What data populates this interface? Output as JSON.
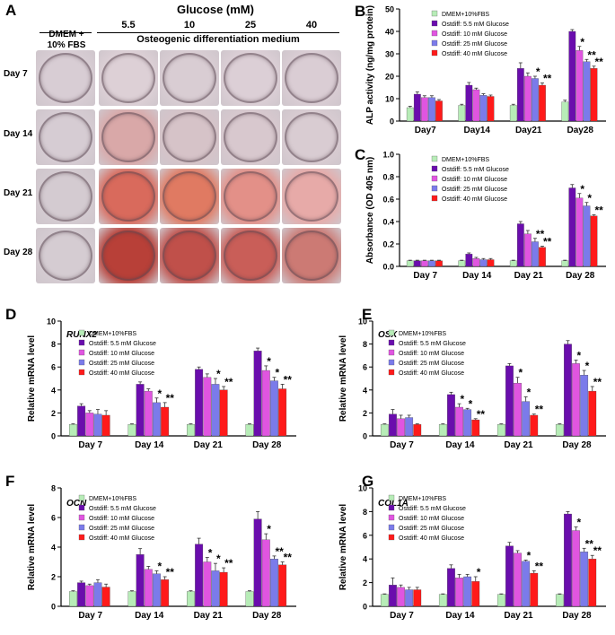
{
  "panel_a": {
    "label": "A",
    "glucose_header": "Glucose (mM)",
    "control_header": "DMEM +\n10% FBS",
    "medium_header": "Osteogenic differentiation medium",
    "concentrations": [
      "5.5",
      "10",
      "25",
      "40"
    ],
    "days": [
      "Day 7",
      "Day 14",
      "Day 21",
      "Day 28"
    ],
    "well_colors": [
      [
        "#d8cdd4",
        "#ddd0d6",
        "#d9cdd3",
        "#dccfd6",
        "#dacdd4"
      ],
      [
        "#d6ccd3",
        "#d9a8a8",
        "#d6c3c8",
        "#d8c8ce",
        "#d9ccd2"
      ],
      [
        "#d4cbd1",
        "#d96a5c",
        "#e07a62",
        "#e39088",
        "#e7aaa8"
      ],
      [
        "#d5ccd2",
        "#b84038",
        "#c0504a",
        "#c95e58",
        "#cc7a74"
      ]
    ]
  },
  "chart_data": [
    {
      "id": "B",
      "type": "bar",
      "title": "",
      "xlabel": "",
      "ylabel": "ALP activity (ng/mg protein)",
      "ylim": [
        0,
        50
      ],
      "yticks": [
        0,
        10,
        20,
        30,
        40,
        50
      ],
      "categories": [
        "Day7",
        "Day14",
        "Day21",
        "Day28"
      ],
      "series": [
        {
          "name": "DMEM+10%FBS",
          "color": "#b7ecb7",
          "values": [
            6,
            7,
            7,
            8.5
          ],
          "errors": [
            0.6,
            0.5,
            0.5,
            0.8
          ],
          "marks": [
            "",
            "",
            "",
            ""
          ]
        },
        {
          "name": "Ostdiff: 5.5 mM Glucose",
          "color": "#6a0dad",
          "values": [
            12,
            16,
            23.5,
            40
          ],
          "errors": [
            1,
            1.2,
            2.5,
            0.8
          ],
          "marks": [
            "",
            "",
            "",
            ""
          ]
        },
        {
          "name": "Ostdiff: 10 mM Glucose",
          "color": "#e055e0",
          "values": [
            10.5,
            14,
            20,
            31.5
          ],
          "errors": [
            0.8,
            0.7,
            1.5,
            1.8
          ],
          "marks": [
            "",
            "",
            "",
            "*"
          ]
        },
        {
          "name": "Ostdiff: 25 mM Glucose",
          "color": "#7b7bea",
          "values": [
            10.5,
            11.5,
            19,
            26.5
          ],
          "errors": [
            0.8,
            0.7,
            1,
            1
          ],
          "marks": [
            "",
            "",
            "*",
            "**"
          ]
        },
        {
          "name": "Ostdiff: 40 mM Glucose",
          "color": "#ff1a1a",
          "values": [
            9,
            11,
            16,
            23.5
          ],
          "errors": [
            0.6,
            0.6,
            1,
            1
          ],
          "marks": [
            "",
            "",
            "**",
            "**"
          ]
        }
      ]
    },
    {
      "id": "C",
      "type": "bar",
      "title": "",
      "xlabel": "",
      "ylabel": "Absorbance (OD 405 nm)",
      "ylim": [
        0,
        1.0
      ],
      "yticks": [
        "0.0",
        "0.2",
        "0.4",
        "0.6",
        "0.8",
        "1.0"
      ],
      "categories": [
        "Day 7",
        "Day 14",
        "Day 21",
        "Day 28"
      ],
      "series": [
        {
          "name": "DMEM+10%FBS",
          "color": "#b7ecb7",
          "values": [
            0.05,
            0.05,
            0.05,
            0.05
          ],
          "errors": [
            0.005,
            0.005,
            0.005,
            0.005
          ],
          "marks": [
            "",
            "",
            "",
            ""
          ]
        },
        {
          "name": "Ostdiff: 5.5 mM Glucose",
          "color": "#6a0dad",
          "values": [
            0.05,
            0.11,
            0.38,
            0.7
          ],
          "errors": [
            0.005,
            0.01,
            0.02,
            0.03
          ],
          "marks": [
            "",
            "",
            "",
            ""
          ]
        },
        {
          "name": "Ostdiff: 10 mM Glucose",
          "color": "#e055e0",
          "values": [
            0.05,
            0.07,
            0.29,
            0.61
          ],
          "errors": [
            0.005,
            0.01,
            0.03,
            0.04
          ],
          "marks": [
            "",
            "",
            "",
            "*"
          ]
        },
        {
          "name": "Ostdiff: 25 mM Glucose",
          "color": "#7b7bea",
          "values": [
            0.05,
            0.06,
            0.22,
            0.54
          ],
          "errors": [
            0.005,
            0.01,
            0.03,
            0.03
          ],
          "marks": [
            "",
            "",
            "**",
            "*"
          ]
        },
        {
          "name": "Ostdiff: 40 mM Glucose",
          "color": "#ff1a1a",
          "values": [
            0.05,
            0.06,
            0.17,
            0.45
          ],
          "errors": [
            0.005,
            0.01,
            0.01,
            0.01
          ],
          "marks": [
            "",
            "",
            "**",
            "**"
          ]
        }
      ]
    },
    {
      "id": "D",
      "type": "bar",
      "title": "RUNX2",
      "xlabel": "",
      "ylabel": "Relative mRNA level",
      "ylim": [
        0,
        10
      ],
      "yticks": [
        0,
        2,
        4,
        6,
        8,
        10
      ],
      "categories": [
        "Day 7",
        "Day 14",
        "Day 21",
        "Day 28"
      ],
      "series": [
        {
          "name": "DMEM+10%FBS",
          "color": "#b7ecb7",
          "values": [
            1,
            1,
            1,
            1
          ],
          "errors": [
            0.05,
            0.05,
            0.05,
            0.05
          ],
          "marks": [
            "",
            "",
            "",
            ""
          ]
        },
        {
          "name": "Ostdiff: 5.5 mM Glucose",
          "color": "#6a0dad",
          "values": [
            2.6,
            4.5,
            5.8,
            7.4
          ],
          "errors": [
            0.2,
            0.2,
            0.2,
            0.25
          ],
          "marks": [
            "",
            "",
            "",
            ""
          ]
        },
        {
          "name": "Ostdiff: 10 mM Glucose",
          "color": "#e055e0",
          "values": [
            2.0,
            3.9,
            5.1,
            5.7
          ],
          "errors": [
            0.2,
            0.2,
            0.3,
            0.4
          ],
          "marks": [
            "",
            "",
            "",
            "*"
          ]
        },
        {
          "name": "Ostdiff: 25 mM Glucose",
          "color": "#7b7bea",
          "values": [
            1.9,
            2.9,
            4.5,
            4.8
          ],
          "errors": [
            0.4,
            0.4,
            0.5,
            0.3
          ],
          "marks": [
            "",
            "*",
            "*",
            "*"
          ]
        },
        {
          "name": "Ostdiff: 40 mM Glucose",
          "color": "#ff1a1a",
          "values": [
            1.8,
            2.5,
            4.0,
            4.1
          ],
          "errors": [
            0.4,
            0.4,
            0.3,
            0.4
          ],
          "marks": [
            "",
            "**",
            "**",
            "**"
          ]
        }
      ]
    },
    {
      "id": "E",
      "type": "bar",
      "title": "OSX",
      "xlabel": "",
      "ylabel": "Relative mRNA level",
      "ylim": [
        0,
        10
      ],
      "yticks": [
        0,
        2,
        4,
        6,
        8,
        10
      ],
      "categories": [
        "Day 7",
        "Day 14",
        "Day 21",
        "Day 28"
      ],
      "series": [
        {
          "name": "DMEM+10%FBS",
          "color": "#b7ecb7",
          "values": [
            1,
            1,
            1,
            1
          ],
          "errors": [
            0.05,
            0.05,
            0.05,
            0.05
          ],
          "marks": [
            "",
            "",
            "",
            ""
          ]
        },
        {
          "name": "Ostdiff: 5.5 mM Glucose",
          "color": "#6a0dad",
          "values": [
            1.9,
            3.6,
            6.1,
            8.0
          ],
          "errors": [
            0.4,
            0.2,
            0.2,
            0.3
          ],
          "marks": [
            "",
            "",
            "",
            ""
          ]
        },
        {
          "name": "Ostdiff: 10 mM Glucose",
          "color": "#e055e0",
          "values": [
            1.5,
            2.5,
            4.6,
            6.3
          ],
          "errors": [
            0.3,
            0.3,
            0.5,
            0.3
          ],
          "marks": [
            "",
            "*",
            "*",
            "*"
          ]
        },
        {
          "name": "Ostdiff: 25 mM Glucose",
          "color": "#7b7bea",
          "values": [
            1.6,
            2.3,
            3.0,
            5.3
          ],
          "errors": [
            0.2,
            0.1,
            0.4,
            0.4
          ],
          "marks": [
            "",
            "*",
            "*",
            "*"
          ]
        },
        {
          "name": "Ostdiff: 40 mM Glucose",
          "color": "#ff1a1a",
          "values": [
            1.0,
            1.4,
            1.8,
            3.9
          ],
          "errors": [
            0.05,
            0.1,
            0.1,
            0.4
          ],
          "marks": [
            "",
            "**",
            "**",
            "**"
          ]
        }
      ]
    },
    {
      "id": "F",
      "type": "bar",
      "title": "OCN",
      "xlabel": "",
      "ylabel": "Relative mRNA level",
      "ylim": [
        0,
        8
      ],
      "yticks": [
        0,
        2,
        4,
        6,
        8
      ],
      "categories": [
        "Day 7",
        "Day 14",
        "Day 21",
        "Day 28"
      ],
      "series": [
        {
          "name": "DMEM+10%FBS",
          "color": "#b7ecb7",
          "values": [
            1,
            1,
            1,
            1
          ],
          "errors": [
            0.05,
            0.05,
            0.05,
            0.05
          ],
          "marks": [
            "",
            "",
            "",
            ""
          ]
        },
        {
          "name": "Ostdiff: 5.5 mM Glucose",
          "color": "#6a0dad",
          "values": [
            1.6,
            3.5,
            4.2,
            5.9
          ],
          "errors": [
            0.1,
            0.4,
            0.4,
            0.5
          ],
          "marks": [
            "",
            "",
            "",
            ""
          ]
        },
        {
          "name": "Ostdiff: 10 mM Glucose",
          "color": "#e055e0",
          "values": [
            1.4,
            2.5,
            3.0,
            4.5
          ],
          "errors": [
            0.1,
            0.2,
            0.3,
            0.4
          ],
          "marks": [
            "",
            "",
            "*",
            "*"
          ]
        },
        {
          "name": "Ostdiff: 25 mM Glucose",
          "color": "#7b7bea",
          "values": [
            1.6,
            2.2,
            2.4,
            3.2
          ],
          "errors": [
            0.2,
            0.2,
            0.5,
            0.2
          ],
          "marks": [
            "",
            "*",
            "*",
            "**"
          ]
        },
        {
          "name": "Ostdiff: 40 mM Glucose",
          "color": "#ff1a1a",
          "values": [
            1.3,
            1.8,
            2.3,
            2.8
          ],
          "errors": [
            0.2,
            0.2,
            0.3,
            0.2
          ],
          "marks": [
            "",
            "**",
            "**",
            "**"
          ]
        }
      ]
    },
    {
      "id": "G",
      "type": "bar",
      "title": "COL1A",
      "xlabel": "",
      "ylabel": "Relative mRNA level",
      "ylim": [
        0,
        10
      ],
      "yticks": [
        0,
        2,
        4,
        6,
        8,
        10
      ],
      "categories": [
        "Day 7",
        "Day 14",
        "Day 21",
        "Day 28"
      ],
      "series": [
        {
          "name": "DMEM+10%FBS",
          "color": "#b7ecb7",
          "values": [
            1,
            1,
            1,
            1
          ],
          "errors": [
            0.05,
            0.05,
            0.05,
            0.05
          ],
          "marks": [
            "",
            "",
            "",
            ""
          ]
        },
        {
          "name": "Ostdiff: 5.5 mM Glucose",
          "color": "#6a0dad",
          "values": [
            1.8,
            3.2,
            5.1,
            7.8
          ],
          "errors": [
            0.6,
            0.3,
            0.3,
            0.2
          ],
          "marks": [
            "",
            "",
            "",
            ""
          ]
        },
        {
          "name": "Ostdiff: 10 mM Glucose",
          "color": "#e055e0",
          "values": [
            1.6,
            2.4,
            4.5,
            6.4
          ],
          "errors": [
            0.2,
            0.3,
            0.2,
            0.3
          ],
          "marks": [
            "",
            "",
            "",
            "*"
          ]
        },
        {
          "name": "Ostdiff: 25 mM Glucose",
          "color": "#7b7bea",
          "values": [
            1.4,
            2.5,
            3.8,
            4.6
          ],
          "errors": [
            0.2,
            0.2,
            0.1,
            0.3
          ],
          "marks": [
            "",
            "",
            "*",
            "**"
          ]
        },
        {
          "name": "Ostdiff: 40 mM Glucose",
          "color": "#ff1a1a",
          "values": [
            1.4,
            2.1,
            2.8,
            4.0
          ],
          "errors": [
            0.2,
            0.4,
            0.2,
            0.3
          ],
          "marks": [
            "",
            "*",
            "**",
            "**"
          ]
        }
      ]
    }
  ]
}
